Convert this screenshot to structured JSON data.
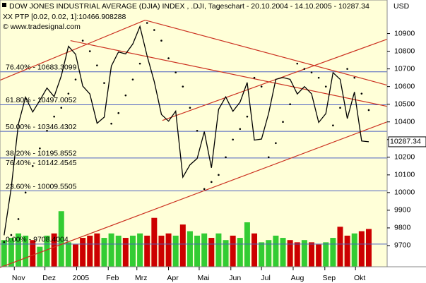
{
  "chart_data": {
    "type": "line",
    "title": "DOW JONES INDUSTRIAL AVERAGE (DJIA) INDEX , .DJI, Tageschart - 20.10.2004 - 14.10.2005 - 10287.34",
    "copyright": "© www.tradesignal.com",
    "currency": "USD",
    "last_price": 10287.34,
    "x": [
      "2004-10-22",
      "2004-10-29",
      "2004-11-05",
      "2004-11-12",
      "2004-11-19",
      "2004-11-26",
      "2004-12-03",
      "2004-12-10",
      "2004-12-17",
      "2004-12-24",
      "2004-12-31",
      "2005-01-07",
      "2005-01-14",
      "2005-01-21",
      "2005-01-28",
      "2005-02-04",
      "2005-02-11",
      "2005-02-18",
      "2005-02-25",
      "2005-03-04",
      "2005-03-11",
      "2005-03-18",
      "2005-03-25",
      "2005-04-01",
      "2005-04-08",
      "2005-04-15",
      "2005-04-22",
      "2005-04-29",
      "2005-05-06",
      "2005-05-13",
      "2005-05-20",
      "2005-05-27",
      "2005-06-03",
      "2005-06-10",
      "2005-06-17",
      "2005-06-24",
      "2005-07-01",
      "2005-07-08",
      "2005-07-15",
      "2005-07-22",
      "2005-07-29",
      "2005-08-05",
      "2005-08-12",
      "2005-08-19",
      "2005-08-26",
      "2005-09-02",
      "2005-09-09",
      "2005-09-16",
      "2005-09-23",
      "2005-09-30",
      "2005-10-07",
      "2005-10-14"
    ],
    "series": [
      {
        "color": "#000000",
        "values": [
          9758,
          10027,
          10387,
          10540,
          10456,
          10522,
          10592,
          10543,
          10661,
          10828,
          10783,
          10603,
          10558,
          10392,
          10427,
          10716,
          10796,
          10785,
          10841,
          10940,
          10774,
          10629,
          10442,
          10404,
          10461,
          10087,
          10157,
          10193,
          10345,
          10140,
          10471,
          10542,
          10460,
          10512,
          10623,
          10297,
          10303,
          10449,
          10641,
          10651,
          10641,
          10558,
          10600,
          10559,
          10397,
          10447,
          10679,
          10641,
          10419,
          10569,
          10292,
          10287.34
        ]
      },
      {
        "name": "XX PTP [0.02, 0.02, 1]:10466.908288",
        "color": "#000000",
        "style": "dots",
        "values": [
          9720,
          9760,
          9850,
          10000,
          10150,
          10250,
          10350,
          10430,
          10480,
          10560,
          10640,
          10860,
          10800,
          10720,
          10620,
          10390,
          10450,
          10550,
          10640,
          10730,
          10960,
          10920,
          10860,
          10760,
          10680,
          10600,
          10480,
          10350,
          10020,
          10060,
          10100,
          10200,
          10300,
          10360,
          10430,
          10650,
          10600,
          10200,
          10280,
          10400,
          10500,
          10730,
          10700,
          10680,
          10650,
          10600,
          10380,
          10480,
          10700,
          10650,
          10560,
          10466.908288
        ]
      }
    ],
    "volume": {
      "values": [
        120,
        130,
        150,
        140,
        120,
        90,
        140,
        150,
        250,
        110,
        100,
        130,
        140,
        150,
        130,
        150,
        140,
        130,
        140,
        150,
        140,
        220,
        140,
        150,
        140,
        190,
        160,
        140,
        150,
        130,
        150,
        120,
        140,
        130,
        200,
        150,
        110,
        120,
        140,
        130,
        120,
        110,
        120,
        110,
        100,
        110,
        130,
        180,
        140,
        150,
        160,
        170
      ],
      "ylim": [
        0,
        1200
      ],
      "up_color": "#33cc33",
      "down_color": "#cc0000"
    },
    "levels": [
      {
        "value": 10683.3099,
        "label": "76.40% - 10683.3099",
        "color": "#4a5fc1",
        "line": true
      },
      {
        "value": 10497.0052,
        "label": "61.80% - 10497.0052",
        "color": "#4a5fc1",
        "line": true
      },
      {
        "value": 10346.4302,
        "label": "50.00% - 10346.4302",
        "color": "#4a5fc1",
        "line": true
      },
      {
        "value": 10195.8552,
        "label": "38.20% - 10195.8552",
        "color": "#4a5fc1",
        "line": true
      },
      {
        "value": 10142.4545,
        "label": "76.40% - 10142.4545",
        "color": "#aaaaaa",
        "line": false
      },
      {
        "value": 10009.5505,
        "label": "23.60% - 10009.5505",
        "color": "#4a5fc1",
        "line": true
      },
      {
        "value": 9708.4004,
        "label": "0.00% - 9708.4004",
        "color": "#4a5fc1",
        "line": true
      }
    ],
    "trendline_color": "#cc3322",
    "trendlines": [
      {
        "x": [
          "2004-10-18",
          "2005-03-09"
        ],
        "values": [
          10636,
          10976
        ]
      },
      {
        "x": [
          "2004-10-18",
          "2005-11-01"
        ],
        "values": [
          9576,
          10400
        ]
      },
      {
        "x": [
          "2005-03-26",
          "2005-11-01"
        ],
        "values": [
          10408,
          10868
        ]
      },
      {
        "x": [
          "2004-12-26",
          "2005-11-01"
        ],
        "values": [
          10860,
          10488
        ]
      },
      {
        "x": [
          "2005-03-09",
          "2005-11-01"
        ],
        "values": [
          10976,
          10608
        ]
      }
    ],
    "xlim": [
      "2004-10-18",
      "2005-11-01"
    ],
    "xticks": [
      {
        "value": "2004-11-01",
        "label": "Nov"
      },
      {
        "value": "2004-12-01",
        "label": "Dez"
      },
      {
        "value": "2005-01-01",
        "label": "2005"
      },
      {
        "value": "2005-02-01",
        "label": "Feb"
      },
      {
        "value": "2005-03-01",
        "label": "Mrz"
      },
      {
        "value": "2005-04-01",
        "label": "Apr"
      },
      {
        "value": "2005-05-01",
        "label": "Mai"
      },
      {
        "value": "2005-06-01",
        "label": "Jun"
      },
      {
        "value": "2005-07-01",
        "label": "Jul"
      },
      {
        "value": "2005-08-01",
        "label": "Aug"
      },
      {
        "value": "2005-09-01",
        "label": "Sep"
      },
      {
        "value": "2005-10-01",
        "label": "Okt"
      }
    ],
    "ylim": [
      9580,
      11090
    ],
    "yticks": [
      9700,
      9800,
      9900,
      10000,
      10100,
      10200,
      10300,
      10400,
      10500,
      10600,
      10700,
      10800,
      10900
    ]
  }
}
